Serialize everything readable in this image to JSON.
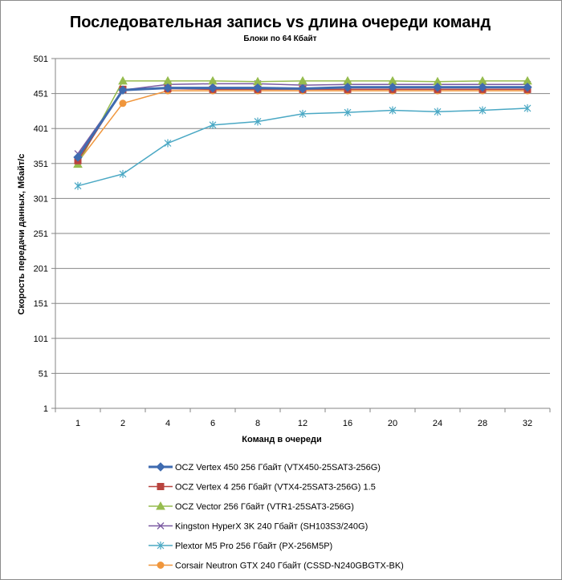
{
  "chart_data": {
    "type": "line",
    "title": "Последовательная запись vs длина очереди команд",
    "subtitle": "Блоки  по 64 Кбайт",
    "xlabel": "Команд  в очереди",
    "ylabel": "Скорость  передачи данных, Мбайт/с",
    "categories": [
      "1",
      "2",
      "4",
      "6",
      "8",
      "12",
      "16",
      "20",
      "24",
      "28",
      "32"
    ],
    "ylim": [
      1,
      501
    ],
    "yticks": [
      "1",
      "51",
      "101",
      "151",
      "201",
      "251",
      "301",
      "351",
      "401",
      "451",
      "501"
    ],
    "grid": "horizontal",
    "legend_position": "bottom",
    "series": [
      {
        "name": "OCZ Vertex  450 256 Гбайт (VTX450-25SAT3-256G)",
        "color": "#3f6bb0",
        "marker": "diamond",
        "width": 3,
        "values": [
          360,
          456,
          459,
          459,
          459,
          458,
          460,
          460,
          460,
          460,
          460
        ]
      },
      {
        "name": "OCZ Vertex  4 256 Гбайт (VTX4-25SAT3-256G)  1.5",
        "color": "#b8433e",
        "marker": "square",
        "width": 1.5,
        "values": [
          355,
          457,
          458,
          457,
          457,
          457,
          457,
          457,
          457,
          457,
          457
        ]
      },
      {
        "name": "OCZ Vector  256 Гбайт (VTR1-25SAT3-256G)",
        "color": "#96bc4e",
        "marker": "triangle",
        "width": 1.5,
        "values": [
          350,
          469,
          469,
          469,
          468,
          469,
          469,
          469,
          468,
          469,
          469
        ]
      },
      {
        "name": "Kingston HyperX  3K 240 Гбайт (SH103S3/240G)",
        "color": "#7a5aa1",
        "marker": "x",
        "width": 1.5,
        "values": [
          365,
          456,
          464,
          465,
          465,
          463,
          464,
          464,
          464,
          464,
          464
        ]
      },
      {
        "name": "Plextor  M5 Pro 256 Гбайт (PX-256M5P)",
        "color": "#4aa8c4",
        "marker": "star",
        "width": 1.5,
        "values": [
          319,
          336,
          380,
          406,
          411,
          422,
          424,
          427,
          425,
          427,
          430
        ]
      },
      {
        "name": "Corsair Neutron GTX 240 Гбайт (CSSD-N240GBGTX-BK)",
        "color": "#f0963c",
        "marker": "circle",
        "width": 1.5,
        "values": [
          353,
          437,
          455,
          455,
          455,
          455,
          455,
          455,
          455,
          455,
          455
        ]
      }
    ]
  }
}
